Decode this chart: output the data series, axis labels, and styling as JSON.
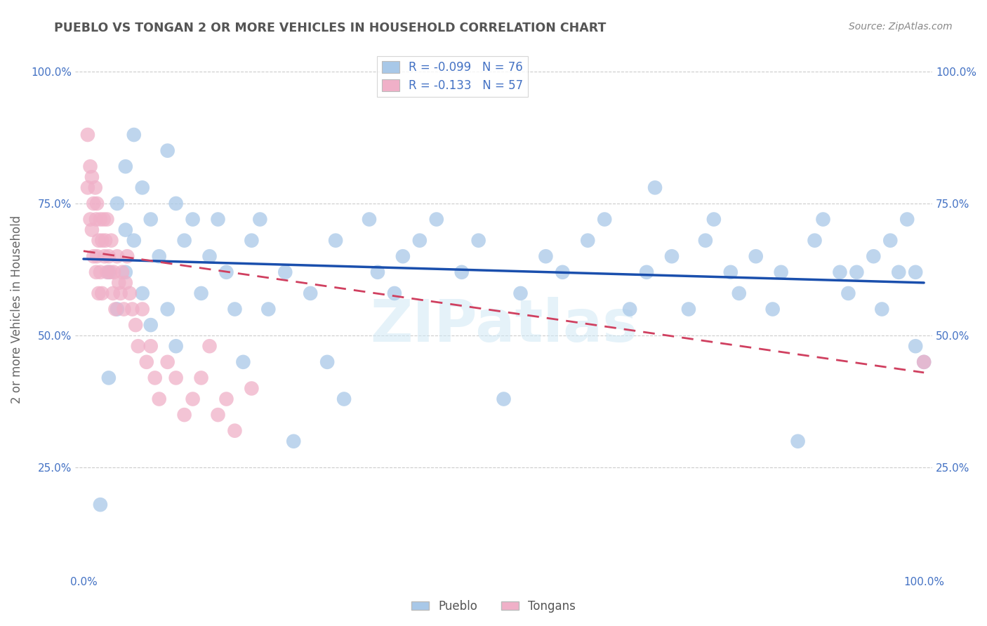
{
  "title": "PUEBLO VS TONGAN 2 OR MORE VEHICLES IN HOUSEHOLD CORRELATION CHART",
  "source": "Source: ZipAtlas.com",
  "ylabel": "2 or more Vehicles in Household",
  "pueblo_color": "#a8c8e8",
  "pueblo_line_color": "#1a4fad",
  "tongan_color": "#f0b0c8",
  "tongan_line_color": "#d04060",
  "pueblo_r": -0.099,
  "pueblo_n": 76,
  "tongan_r": -0.133,
  "tongan_n": 57,
  "pueblo_x": [
    0.02,
    0.03,
    0.03,
    0.04,
    0.04,
    0.05,
    0.05,
    0.05,
    0.06,
    0.06,
    0.07,
    0.07,
    0.08,
    0.08,
    0.09,
    0.1,
    0.1,
    0.11,
    0.11,
    0.12,
    0.13,
    0.14,
    0.15,
    0.16,
    0.17,
    0.18,
    0.19,
    0.2,
    0.21,
    0.22,
    0.24,
    0.25,
    0.27,
    0.29,
    0.3,
    0.31,
    0.34,
    0.35,
    0.37,
    0.38,
    0.4,
    0.42,
    0.45,
    0.47,
    0.5,
    0.52,
    0.55,
    0.57,
    0.6,
    0.62,
    0.65,
    0.67,
    0.68,
    0.7,
    0.72,
    0.74,
    0.75,
    0.77,
    0.78,
    0.8,
    0.82,
    0.83,
    0.85,
    0.87,
    0.88,
    0.9,
    0.91,
    0.92,
    0.94,
    0.95,
    0.96,
    0.97,
    0.98,
    0.99,
    0.99,
    1.0
  ],
  "pueblo_y": [
    0.18,
    0.62,
    0.42,
    0.75,
    0.55,
    0.82,
    0.7,
    0.62,
    0.88,
    0.68,
    0.78,
    0.58,
    0.72,
    0.52,
    0.65,
    0.85,
    0.55,
    0.75,
    0.48,
    0.68,
    0.72,
    0.58,
    0.65,
    0.72,
    0.62,
    0.55,
    0.45,
    0.68,
    0.72,
    0.55,
    0.62,
    0.3,
    0.58,
    0.45,
    0.68,
    0.38,
    0.72,
    0.62,
    0.58,
    0.65,
    0.68,
    0.72,
    0.62,
    0.68,
    0.38,
    0.58,
    0.65,
    0.62,
    0.68,
    0.72,
    0.55,
    0.62,
    0.78,
    0.65,
    0.55,
    0.68,
    0.72,
    0.62,
    0.58,
    0.65,
    0.55,
    0.62,
    0.3,
    0.68,
    0.72,
    0.62,
    0.58,
    0.62,
    0.65,
    0.55,
    0.68,
    0.62,
    0.72,
    0.48,
    0.62,
    0.45
  ],
  "tongan_x": [
    0.005,
    0.005,
    0.008,
    0.008,
    0.01,
    0.01,
    0.012,
    0.012,
    0.014,
    0.015,
    0.015,
    0.016,
    0.016,
    0.018,
    0.018,
    0.02,
    0.02,
    0.022,
    0.022,
    0.024,
    0.025,
    0.026,
    0.028,
    0.028,
    0.03,
    0.032,
    0.033,
    0.035,
    0.036,
    0.038,
    0.04,
    0.042,
    0.044,
    0.046,
    0.048,
    0.05,
    0.052,
    0.055,
    0.058,
    0.062,
    0.065,
    0.07,
    0.075,
    0.08,
    0.085,
    0.09,
    0.1,
    0.11,
    0.12,
    0.13,
    0.14,
    0.15,
    0.16,
    0.17,
    0.18,
    0.2,
    1.0
  ],
  "tongan_y": [
    0.88,
    0.78,
    0.82,
    0.72,
    0.8,
    0.7,
    0.75,
    0.65,
    0.78,
    0.72,
    0.62,
    0.75,
    0.65,
    0.68,
    0.58,
    0.72,
    0.62,
    0.68,
    0.58,
    0.72,
    0.65,
    0.68,
    0.62,
    0.72,
    0.65,
    0.62,
    0.68,
    0.58,
    0.62,
    0.55,
    0.65,
    0.6,
    0.58,
    0.62,
    0.55,
    0.6,
    0.65,
    0.58,
    0.55,
    0.52,
    0.48,
    0.55,
    0.45,
    0.48,
    0.42,
    0.38,
    0.45,
    0.42,
    0.35,
    0.38,
    0.42,
    0.48,
    0.35,
    0.38,
    0.32,
    0.4,
    0.45
  ],
  "pueblo_trend_x0": 0.0,
  "pueblo_trend_x1": 1.0,
  "pueblo_trend_y0": 0.645,
  "pueblo_trend_y1": 0.6,
  "tongan_trend_x0": 0.0,
  "tongan_trend_x1": 1.0,
  "tongan_trend_y0": 0.66,
  "tongan_trend_y1": 0.43,
  "xlim": [
    -0.01,
    1.01
  ],
  "ylim": [
    0.05,
    1.05
  ],
  "yticks": [
    0.25,
    0.5,
    0.75,
    1.0
  ],
  "background_color": "#ffffff",
  "grid_color": "#cccccc",
  "tick_color": "#4472c4",
  "title_color": "#555555",
  "source_color": "#888888",
  "watermark_text": "ZIPatlas",
  "watermark_color": "#d0e8f5"
}
